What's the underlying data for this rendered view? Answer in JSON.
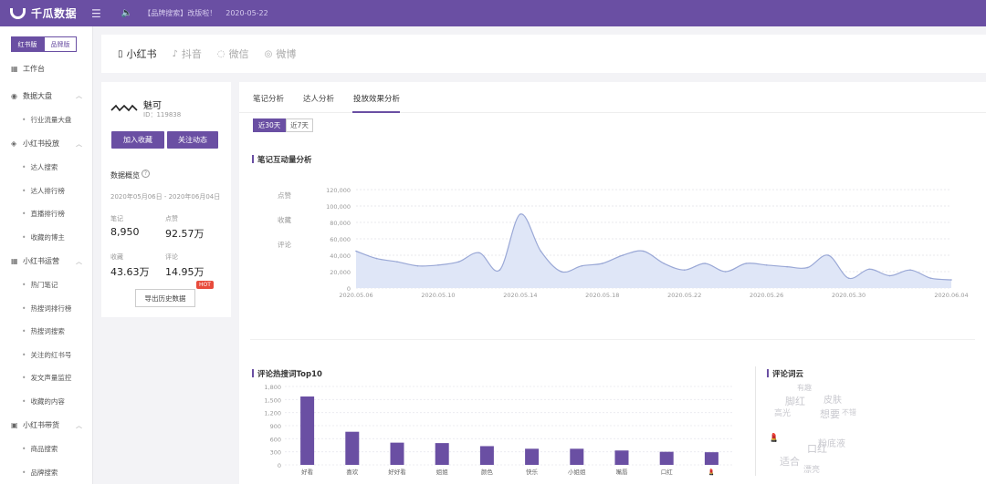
{
  "header": {
    "brand": "千瓜数据",
    "notice": "【品牌搜索】改版啦！",
    "date": "2020-05-22",
    "colors": {
      "primary": "#6a4fa3"
    }
  },
  "sidebar": {
    "version_tabs": [
      "红书版",
      "品牌版"
    ],
    "workbench": "工作台",
    "groups": [
      {
        "label": "数据大盘",
        "icon": "gauge-icon",
        "items": [
          "行业流量大盘"
        ]
      },
      {
        "label": "小红书投放",
        "icon": "shield-icon",
        "items": [
          "达人搜索",
          "达人排行榜",
          "直播排行榜",
          "收藏的博主"
        ]
      },
      {
        "label": "小红书运营",
        "icon": "grid-icon",
        "items": [
          "热门笔记",
          "热搜词排行榜",
          "热搜词搜索",
          "关注的红书号",
          "发文声量监控",
          "收藏的内容"
        ]
      },
      {
        "label": "小红书带货",
        "icon": "bag-icon",
        "items": [
          "商品搜索",
          "品牌搜索"
        ]
      }
    ]
  },
  "platforms": [
    {
      "label": "小红书",
      "icon": "book-icon"
    },
    {
      "label": "抖音",
      "icon": "tiktok-icon"
    },
    {
      "label": "微信",
      "icon": "wechat-icon"
    },
    {
      "label": "微博",
      "icon": "weibo-icon"
    }
  ],
  "profile": {
    "name": "魅可",
    "id_text": "ID：119838",
    "follow_button": "加入收藏",
    "track_button": "关注动态",
    "overview_title": "数据概览",
    "date_range": "2020年05月06日 - 2020年06月04日",
    "stats": [
      {
        "label": "笔记",
        "value": "8,950"
      },
      {
        "label": "点赞",
        "value": "92.57万"
      },
      {
        "label": "收藏",
        "value": "43.63万"
      },
      {
        "label": "评论",
        "value": "14.95万"
      }
    ],
    "export_button": "导出历史数据",
    "hot_badge": "HOT"
  },
  "analysis": {
    "tabs": [
      "笔记分析",
      "达人分析",
      "投放效果分析"
    ],
    "active_tab": 2,
    "periods": [
      "近30天",
      "近7天"
    ],
    "active_period": 0,
    "line_section_title": "笔记互动量分析",
    "line_legend": [
      "点赞",
      "收藏",
      "评论"
    ],
    "bar_section_title": "评论热搜词Top10",
    "wordcloud_title": "评论词云",
    "wordcloud_words": [
      {
        "text": "有趣",
        "size": 8
      },
      {
        "text": "脚红",
        "size": 11
      },
      {
        "text": "皮肤",
        "size": 10
      },
      {
        "text": "高光",
        "size": 9
      },
      {
        "text": "想要",
        "size": 11
      },
      {
        "text": "不错",
        "size": 8
      },
      {
        "text": "粉底液",
        "size": 10
      },
      {
        "text": "口红",
        "size": 11
      },
      {
        "text": "适合",
        "size": 11
      },
      {
        "text": "漂亮",
        "size": 9
      }
    ]
  },
  "chart_data": [
    {
      "type": "area",
      "ylim": [
        0,
        120000
      ],
      "y_ticks": [
        "120,000",
        "100,000",
        "80,000",
        "60,000",
        "40,000",
        "20,000",
        "0"
      ],
      "x_ticks": [
        "2020.05.06",
        "2020.05.10",
        "2020.05.14",
        "2020.05.18",
        "2020.05.22",
        "2020.05.26",
        "2020.05.30",
        "2020.06.04"
      ],
      "x": [
        "2020.05.06",
        "2020.05.07",
        "2020.05.08",
        "2020.05.09",
        "2020.05.10",
        "2020.05.11",
        "2020.05.12",
        "2020.05.13",
        "2020.05.14",
        "2020.05.15",
        "2020.05.16",
        "2020.05.17",
        "2020.05.18",
        "2020.05.19",
        "2020.05.20",
        "2020.05.21",
        "2020.05.22",
        "2020.05.23",
        "2020.05.24",
        "2020.05.25",
        "2020.05.26",
        "2020.05.27",
        "2020.05.28",
        "2020.05.29",
        "2020.05.30",
        "2020.05.31",
        "2020.06.01",
        "2020.06.02",
        "2020.06.03",
        "2020.06.04"
      ],
      "values": [
        45000,
        36000,
        32000,
        27000,
        28000,
        32000,
        43000,
        22000,
        90000,
        45000,
        20000,
        27000,
        30000,
        40000,
        45000,
        30000,
        22000,
        30000,
        20000,
        30000,
        28000,
        26000,
        25000,
        40000,
        12000,
        23000,
        15000,
        22000,
        12000,
        10000
      ]
    },
    {
      "type": "bar",
      "ylim": [
        0,
        1800
      ],
      "y_ticks": [
        "1,800",
        "1,500",
        "1,200",
        "900",
        "600",
        "300",
        "0"
      ],
      "categories": [
        "好看",
        "喜欢",
        "好好看",
        "姐姐",
        "颜色",
        "快乐",
        "小姐姐",
        "嘴唇",
        "口红",
        "💄"
      ],
      "values": [
        1570,
        760,
        510,
        500,
        430,
        370,
        370,
        330,
        300,
        290
      ]
    }
  ]
}
